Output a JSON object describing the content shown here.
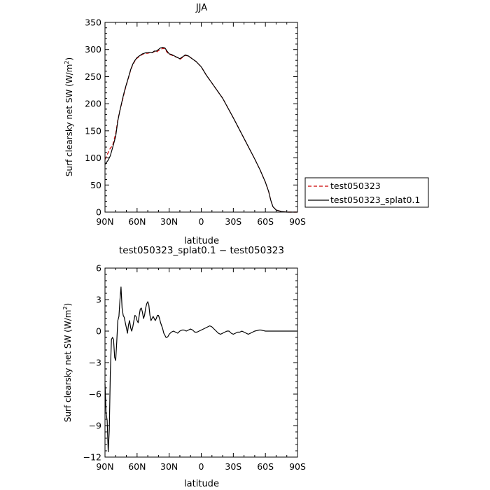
{
  "chart_data": [
    {
      "type": "line",
      "title": "JJA",
      "xlabel": "latitude",
      "ylabel": "Surf clearsky net SW (W/m2)",
      "ylabel_parts": {
        "prefix": "Surf clearsky net SW (W/m",
        "sup": "2",
        "suffix": ")"
      },
      "xlim": [
        90,
        -90
      ],
      "ylim": [
        0,
        350
      ],
      "x_ticks": [
        90,
        60,
        30,
        0,
        -30,
        -60,
        -90
      ],
      "x_tick_labels": [
        "90N",
        "60N",
        "30N",
        "0",
        "30S",
        "60S",
        "90S"
      ],
      "y_ticks": [
        0,
        50,
        100,
        150,
        200,
        250,
        300,
        350
      ],
      "y_tick_labels": [
        "0",
        "50",
        "100",
        "150",
        "200",
        "250",
        "300",
        "350"
      ],
      "legend_position": "right",
      "series": [
        {
          "name": "test050323",
          "color": "#cc0000",
          "dash": "dashed",
          "x": [
            90,
            87,
            85,
            83,
            80,
            78,
            76,
            74,
            72,
            70,
            68,
            66,
            64,
            62,
            60,
            58,
            55,
            52,
            50,
            48,
            46,
            44,
            42,
            40,
            38,
            36,
            34,
            32,
            30,
            28,
            25,
            22,
            20,
            17,
            15,
            12,
            10,
            5,
            0,
            -5,
            -10,
            -20,
            -30,
            -40,
            -50,
            -55,
            -60,
            -63,
            -65,
            -67,
            -70,
            -75,
            -80,
            -85,
            -90
          ],
          "y": [
            97,
            110,
            118,
            122,
            145,
            170,
            188,
            203,
            220,
            235,
            248,
            262,
            272,
            279,
            284,
            287,
            291,
            293,
            293,
            294,
            294,
            296,
            295,
            298,
            300,
            302,
            301,
            295,
            291,
            290,
            287,
            285,
            282,
            286,
            289,
            288,
            285,
            278,
            268,
            252,
            238,
            210,
            174,
            136,
            98,
            78,
            55,
            38,
            22,
            10,
            4,
            1,
            0,
            0,
            0
          ]
        },
        {
          "name": "test050323_splat0.1",
          "color": "#000000",
          "dash": "solid",
          "x": [
            90,
            87,
            85,
            83,
            80,
            78,
            76,
            74,
            72,
            70,
            68,
            66,
            64,
            62,
            60,
            58,
            55,
            52,
            50,
            48,
            46,
            44,
            42,
            40,
            38,
            36,
            34,
            32,
            30,
            28,
            25,
            22,
            20,
            17,
            15,
            12,
            10,
            5,
            0,
            -5,
            -10,
            -20,
            -30,
            -40,
            -50,
            -55,
            -60,
            -63,
            -65,
            -67,
            -70,
            -75,
            -80,
            -85,
            -90
          ],
          "y": [
            88,
            96,
            104,
            118,
            140,
            168,
            188,
            205,
            222,
            236,
            249,
            263,
            273,
            280,
            285,
            288,
            292,
            294,
            294,
            295,
            294,
            297,
            297,
            300,
            303,
            304,
            303,
            297,
            292,
            291,
            288,
            285,
            283,
            287,
            290,
            288,
            285,
            278,
            268,
            252,
            238,
            210,
            174,
            136,
            98,
            78,
            55,
            38,
            22,
            10,
            4,
            1,
            0,
            0,
            0
          ]
        }
      ]
    },
    {
      "type": "line",
      "title": "test050323_splat0.1 − test050323",
      "xlabel": "latitude",
      "ylabel": "Surf clearsky net SW (W/m2)",
      "ylabel_parts": {
        "prefix": "Surf clearsky net SW (W/m",
        "sup": "2",
        "suffix": ")"
      },
      "xlim": [
        90,
        -90
      ],
      "ylim": [
        -12,
        6
      ],
      "x_ticks": [
        90,
        60,
        30,
        0,
        -30,
        -60,
        -90
      ],
      "x_tick_labels": [
        "90N",
        "60N",
        "30N",
        "0",
        "30S",
        "60S",
        "90S"
      ],
      "y_ticks": [
        -12,
        -9,
        -6,
        -3,
        0,
        3,
        6
      ],
      "y_tick_labels": [
        "−12",
        "−9",
        "−6",
        "−3",
        "0",
        "3",
        "6"
      ],
      "series": [
        {
          "name": "",
          "color": "#000000",
          "dash": "solid",
          "x": [
            90,
            89,
            88,
            87,
            86,
            85,
            84,
            83,
            82,
            81,
            80,
            79,
            78,
            77,
            76,
            75,
            74,
            73,
            72,
            71,
            70,
            69,
            68,
            67,
            66,
            65,
            64,
            63,
            62,
            61,
            60,
            59,
            58,
            57,
            56,
            55,
            54,
            53,
            52,
            51,
            50,
            49,
            48,
            47,
            46,
            45,
            44,
            43,
            42,
            41,
            40,
            39,
            38,
            37,
            36,
            35,
            34,
            33,
            32,
            31,
            30,
            29,
            28,
            26,
            24,
            22,
            20,
            18,
            16,
            14,
            12,
            10,
            8,
            6,
            4,
            2,
            0,
            -2,
            -4,
            -6,
            -8,
            -10,
            -12,
            -14,
            -16,
            -18,
            -20,
            -22,
            -24,
            -26,
            -28,
            -30,
            -32,
            -34,
            -36,
            -38,
            -40,
            -42,
            -44,
            -46,
            -48,
            -50,
            -52,
            -54,
            -56,
            -58,
            -60,
            -62,
            -64,
            -66,
            -68,
            -70,
            -75,
            -80,
            -85,
            -90
          ],
          "y": [
            -5.0,
            -7.8,
            -8.5,
            -11.5,
            -9.5,
            -4.0,
            -0.8,
            -0.6,
            -0.8,
            -2.5,
            -2.8,
            -1.0,
            1.0,
            1.4,
            3.0,
            4.2,
            2.2,
            1.5,
            1.3,
            0.8,
            0.3,
            -0.2,
            0.6,
            1.0,
            0.3,
            0.0,
            0.4,
            1.0,
            1.5,
            1.4,
            1.0,
            0.8,
            1.5,
            2.1,
            2.2,
            1.8,
            1.2,
            1.5,
            2.2,
            2.6,
            2.8,
            2.5,
            1.5,
            1.0,
            1.2,
            1.4,
            1.2,
            1.0,
            1.2,
            1.5,
            1.5,
            1.2,
            0.8,
            0.5,
            0.2,
            -0.2,
            -0.4,
            -0.6,
            -0.6,
            -0.5,
            -0.3,
            -0.2,
            -0.1,
            0.0,
            -0.1,
            -0.2,
            0.0,
            0.1,
            0.1,
            0.0,
            0.1,
            0.2,
            0.1,
            -0.1,
            -0.1,
            0.0,
            0.1,
            0.2,
            0.3,
            0.4,
            0.5,
            0.4,
            0.2,
            0.0,
            -0.2,
            -0.3,
            -0.2,
            -0.1,
            0.0,
            0.0,
            -0.2,
            -0.3,
            -0.2,
            -0.1,
            -0.1,
            0.0,
            -0.1,
            -0.2,
            -0.3,
            -0.2,
            -0.1,
            0.0,
            0.05,
            0.1,
            0.1,
            0.05,
            0.0,
            0.0,
            0.0,
            0.0,
            0.0,
            0.0,
            0.0,
            0.0,
            0.0,
            0.0
          ]
        }
      ]
    }
  ]
}
